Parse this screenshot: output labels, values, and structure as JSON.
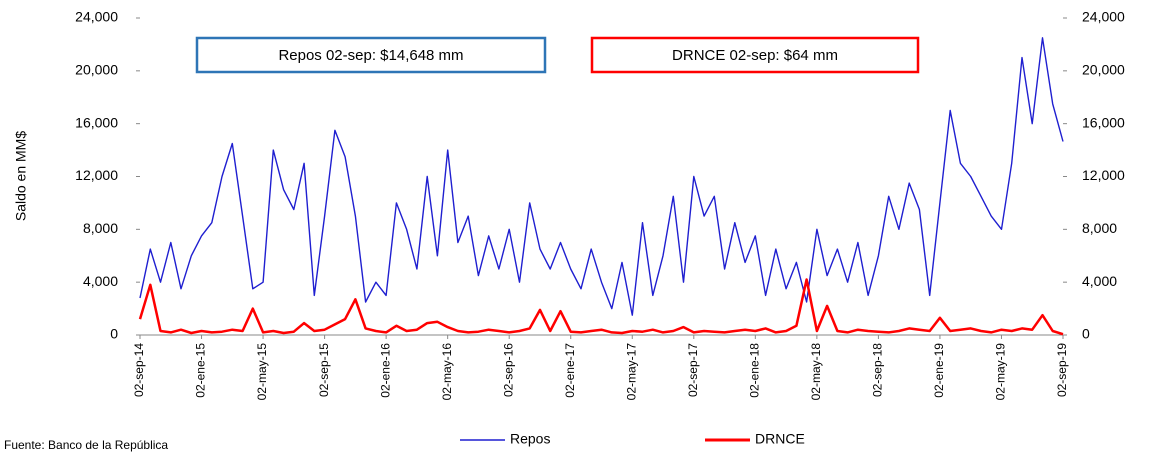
{
  "chart_data": {
    "type": "line",
    "y_label": "Saldo en MM$",
    "source": "Fuente:  Banco de la República",
    "annotations": [
      "Repos 02-sep: $14,648  mm",
      "DRNCE 02-sep: $64  mm"
    ],
    "categories": [
      "02-sep-14",
      null,
      null,
      null,
      null,
      null,
      "02-ene-15",
      null,
      null,
      null,
      null,
      null,
      "02-may-15",
      null,
      null,
      null,
      null,
      null,
      "02-sep-15",
      null,
      null,
      null,
      null,
      null,
      "02-ene-16",
      null,
      null,
      null,
      null,
      null,
      "02-may-16",
      null,
      null,
      null,
      null,
      null,
      "02-sep-16",
      null,
      null,
      null,
      null,
      null,
      "02-ene-17",
      null,
      null,
      null,
      null,
      null,
      "02-may-17",
      null,
      null,
      null,
      null,
      null,
      "02-sep-17",
      null,
      null,
      null,
      null,
      null,
      "02-ene-18",
      null,
      null,
      null,
      null,
      null,
      "02-may-18",
      null,
      null,
      null,
      null,
      null,
      "02-sep-18",
      null,
      null,
      null,
      null,
      null,
      "02-ene-19",
      null,
      null,
      null,
      null,
      null,
      "02-may-19",
      null,
      null,
      null,
      null,
      null,
      "02-sep-19"
    ],
    "series": [
      {
        "name": "Repos",
        "color": "#1f1fd0",
        "axis": "y",
        "values": [
          2800,
          6500,
          4000,
          7000,
          3500,
          6000,
          7500,
          8500,
          12000,
          14500,
          9000,
          3500,
          4000,
          14000,
          11000,
          9500,
          13000,
          3000,
          9000,
          15500,
          13500,
          9000,
          2500,
          4000,
          3000,
          10000,
          8000,
          5000,
          12000,
          6000,
          14000,
          7000,
          9000,
          4500,
          7500,
          5000,
          8000,
          4000,
          10000,
          6500,
          5000,
          7000,
          5000,
          3500,
          6500,
          4000,
          2000,
          5500,
          1500,
          8500,
          3000,
          6000,
          10500,
          4000,
          12000,
          9000,
          10500,
          5000,
          8500,
          5500,
          7500,
          3000,
          6500,
          3500,
          5500,
          2500,
          8000,
          4500,
          6500,
          4000,
          7000,
          3000,
          6000,
          10500,
          8000,
          11500,
          9500,
          3000,
          10000,
          17000,
          13000,
          12000,
          10500,
          9000,
          8000,
          13000,
          21000,
          16000,
          22500,
          17500,
          14648
        ]
      },
      {
        "name": "DRNCE",
        "color": "#ff0000",
        "axis": "y2",
        "values": [
          1200,
          3800,
          300,
          200,
          400,
          150,
          300,
          200,
          250,
          400,
          300,
          2000,
          200,
          300,
          150,
          250,
          900,
          300,
          400,
          800,
          1200,
          2700,
          500,
          300,
          200,
          700,
          300,
          400,
          900,
          1000,
          600,
          300,
          200,
          250,
          400,
          300,
          200,
          300,
          500,
          1900,
          300,
          1800,
          250,
          200,
          300,
          400,
          200,
          150,
          300,
          250,
          400,
          200,
          300,
          600,
          200,
          300,
          250,
          200,
          300,
          400,
          300,
          500,
          200,
          300,
          700,
          4200,
          300,
          2200,
          300,
          200,
          400,
          300,
          250,
          200,
          300,
          500,
          400,
          300,
          1300,
          300,
          400,
          500,
          300,
          200,
          400,
          300,
          500,
          400,
          1500,
          300,
          64
        ]
      }
    ],
    "ylim": [
      0,
      24000
    ],
    "yticks": [
      0,
      {
        "value": 4000,
        "label": "4,000"
      },
      {
        "value": 8000,
        "label": "8,000"
      },
      {
        "value": 12000,
        "label": "12,000"
      },
      {
        "value": 16000,
        "label": "16,000"
      },
      {
        "value": 20000,
        "label": "20,000"
      },
      {
        "value": 24000,
        "label": "24,000"
      }
    ],
    "y2lim": [
      0,
      24000
    ],
    "y2ticks": [
      0,
      {
        "value": 4000,
        "label": "4,000"
      },
      {
        "value": 8000,
        "label": "8,000"
      },
      {
        "value": 12000,
        "label": "12,000"
      },
      {
        "value": 16000,
        "label": "16,000"
      },
      {
        "value": 20000,
        "label": "20,000"
      },
      {
        "value": 24000,
        "label": "24,000"
      }
    ],
    "legend": "bottom"
  }
}
